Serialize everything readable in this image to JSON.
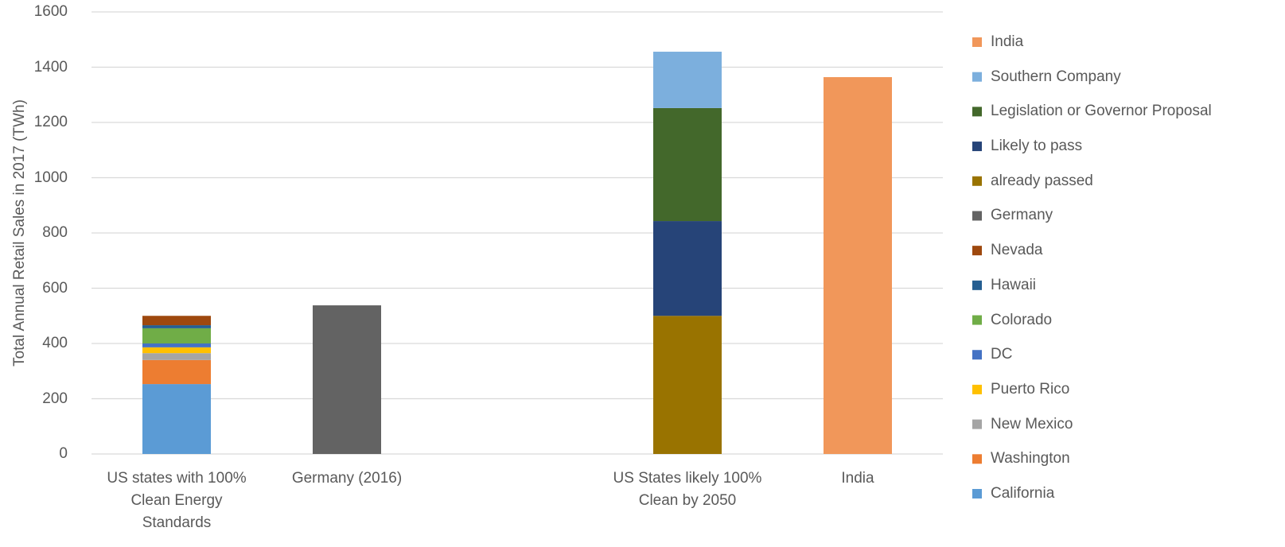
{
  "chart_data": {
    "type": "stacked_bar",
    "y_label": "Total Annual Retail Sales in 2017 (TWh)",
    "categories": [
      "US states with 100% Clean Energy Standards",
      "Germany (2016)",
      null,
      "US States likely 100% Clean by 2050",
      "India"
    ],
    "series": [
      {
        "name": "California",
        "color": "#5b9bd5",
        "values": [
          253,
          null,
          null,
          null,
          null
        ]
      },
      {
        "name": "Washington",
        "color": "#ed7d31",
        "values": [
          87,
          null,
          null,
          null,
          null
        ]
      },
      {
        "name": "New Mexico",
        "color": "#a5a5a5",
        "values": [
          25,
          null,
          null,
          null,
          null
        ]
      },
      {
        "name": "Puerto Rico",
        "color": "#ffc000",
        "values": [
          21,
          null,
          null,
          null,
          null
        ]
      },
      {
        "name": "DC",
        "color": "#4472c4",
        "values": [
          14,
          null,
          null,
          null,
          null
        ]
      },
      {
        "name": "Colorado",
        "color": "#70ad47",
        "values": [
          55,
          null,
          null,
          null,
          null
        ]
      },
      {
        "name": "Hawaii",
        "color": "#255e91",
        "values": [
          11,
          null,
          null,
          null,
          null
        ]
      },
      {
        "name": "Nevada",
        "color": "#9e480e",
        "values": [
          34,
          null,
          null,
          null,
          null
        ]
      },
      {
        "name": "Germany",
        "color": "#636363",
        "values": [
          null,
          538,
          null,
          null,
          null
        ]
      },
      {
        "name": "already passed",
        "color": "#997300",
        "values": [
          null,
          null,
          null,
          500,
          null
        ]
      },
      {
        "name": "Likely to pass",
        "color": "#264478",
        "values": [
          null,
          null,
          null,
          343,
          null
        ]
      },
      {
        "name": "Legislation or Governor Proposal",
        "color": "#43682b",
        "values": [
          null,
          null,
          null,
          409,
          null
        ]
      },
      {
        "name": "Southern Company",
        "color": "#7cafdd",
        "values": [
          null,
          null,
          null,
          204,
          null
        ]
      },
      {
        "name": "India",
        "color": "#f1975a",
        "values": [
          null,
          null,
          null,
          null,
          1364
        ]
      }
    ],
    "ylim": [
      0,
      1600
    ],
    "yticks": [
      0,
      200,
      400,
      600,
      800,
      1000,
      1200,
      1400,
      1600
    ],
    "grid": true,
    "legend": "right"
  }
}
